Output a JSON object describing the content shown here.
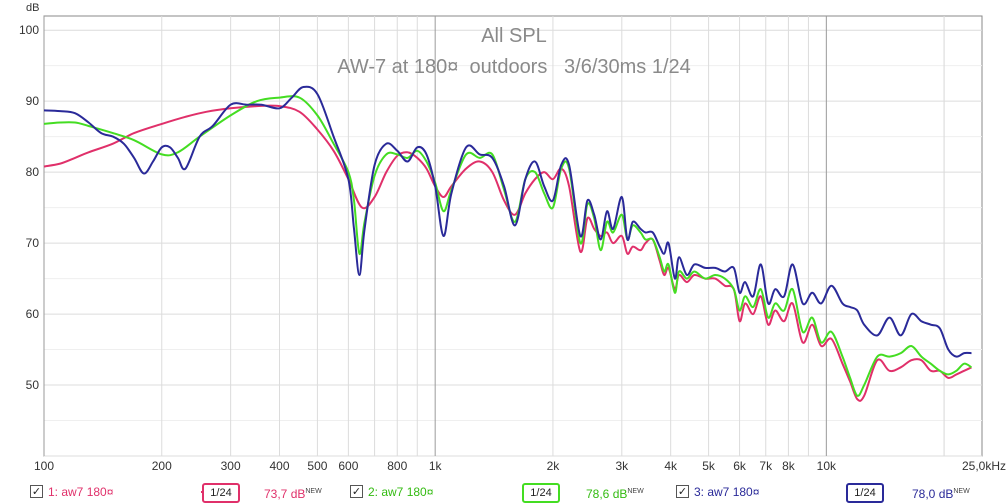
{
  "chart_data": {
    "type": "line",
    "title": "All SPL",
    "subtitle": "AW-7 at 180¤  outdoors   3/6/30ms 1/24",
    "ylabel": "dB",
    "xlabel": "",
    "x_scale": "log",
    "xlim": [
      100,
      25000
    ],
    "ylim": [
      40,
      102
    ],
    "y_ticks": [
      50,
      60,
      70,
      80,
      90,
      100
    ],
    "x_ticks": [
      {
        "value": 100,
        "label": "100"
      },
      {
        "value": 200,
        "label": "200"
      },
      {
        "value": 300,
        "label": "300"
      },
      {
        "value": 400,
        "label": "400"
      },
      {
        "value": 500,
        "label": "500"
      },
      {
        "value": 600,
        "label": "600"
      },
      {
        "value": 800,
        "label": "800"
      },
      {
        "value": 1000,
        "label": "1k"
      },
      {
        "value": 2000,
        "label": "2k"
      },
      {
        "value": 3000,
        "label": "3k"
      },
      {
        "value": 4000,
        "label": "4k"
      },
      {
        "value": 5000,
        "label": "5k"
      },
      {
        "value": 6000,
        "label": "6k"
      },
      {
        "value": 7000,
        "label": "7k"
      },
      {
        "value": 8000,
        "label": "8k"
      },
      {
        "value": 10000,
        "label": "10k"
      },
      {
        "value": 25000,
        "label": "25,0kHz"
      }
    ],
    "grid": true,
    "series": [
      {
        "name": "1: aw7 180¤",
        "color": "#e0306a",
        "smoothing": "1/24",
        "level": "73,7 dB",
        "points": [
          [
            100,
            80.8
          ],
          [
            110,
            81.2
          ],
          [
            120,
            82.0
          ],
          [
            130,
            82.8
          ],
          [
            150,
            84.0
          ],
          [
            170,
            85.5
          ],
          [
            200,
            86.8
          ],
          [
            230,
            87.8
          ],
          [
            260,
            88.5
          ],
          [
            300,
            89.0
          ],
          [
            350,
            89.3
          ],
          [
            400,
            89.3
          ],
          [
            450,
            88.5
          ],
          [
            500,
            86.0
          ],
          [
            550,
            83.0
          ],
          [
            600,
            79.0
          ],
          [
            650,
            75.0
          ],
          [
            700,
            76.5
          ],
          [
            750,
            80.0
          ],
          [
            800,
            82.3
          ],
          [
            850,
            82.8
          ],
          [
            900,
            82.0
          ],
          [
            950,
            80.5
          ],
          [
            1000,
            78.0
          ],
          [
            1050,
            76.5
          ],
          [
            1100,
            78.0
          ],
          [
            1200,
            80.5
          ],
          [
            1300,
            81.5
          ],
          [
            1400,
            80.0
          ],
          [
            1500,
            76.0
          ],
          [
            1600,
            74.0
          ],
          [
            1700,
            77.0
          ],
          [
            1800,
            79.0
          ],
          [
            1900,
            80.0
          ],
          [
            2000,
            79.0
          ],
          [
            2100,
            80.5
          ],
          [
            2200,
            78.0
          ],
          [
            2350,
            68.8
          ],
          [
            2450,
            73.5
          ],
          [
            2550,
            72.0
          ],
          [
            2650,
            71.0
          ],
          [
            2750,
            71.5
          ],
          [
            2850,
            70.0
          ],
          [
            3000,
            71.0
          ],
          [
            3100,
            68.5
          ],
          [
            3200,
            69.5
          ],
          [
            3350,
            69.0
          ],
          [
            3450,
            70.0
          ],
          [
            3600,
            70.5
          ],
          [
            3750,
            67.5
          ],
          [
            3850,
            65.5
          ],
          [
            3950,
            66.5
          ],
          [
            4100,
            63.5
          ],
          [
            4200,
            65.5
          ],
          [
            4400,
            64.5
          ],
          [
            4600,
            65.5
          ],
          [
            4900,
            65.0
          ],
          [
            5200,
            65.0
          ],
          [
            5500,
            64.0
          ],
          [
            5800,
            63.5
          ],
          [
            6000,
            59.0
          ],
          [
            6200,
            61.5
          ],
          [
            6500,
            60.0
          ],
          [
            6800,
            62.5
          ],
          [
            7100,
            58.5
          ],
          [
            7400,
            60.5
          ],
          [
            7800,
            59.0
          ],
          [
            8200,
            61.5
          ],
          [
            8700,
            56.0
          ],
          [
            9200,
            58.5
          ],
          [
            9700,
            55.5
          ],
          [
            10300,
            56.5
          ],
          [
            11000,
            53.0
          ],
          [
            11500,
            50.5
          ],
          [
            12000,
            48.0
          ],
          [
            12500,
            48.5
          ],
          [
            13500,
            53.5
          ],
          [
            14500,
            52.0
          ],
          [
            15500,
            52.5
          ],
          [
            16500,
            53.5
          ],
          [
            17500,
            53.5
          ],
          [
            18500,
            52.0
          ],
          [
            19500,
            52.0
          ],
          [
            20500,
            51.0
          ],
          [
            21500,
            51.5
          ],
          [
            22500,
            52.0
          ],
          [
            23500,
            52.5
          ]
        ]
      },
      {
        "name": "2: aw7 180¤",
        "color": "#44dd22",
        "smoothing": "1/24",
        "level": "78,6 dB",
        "points": [
          [
            100,
            86.8
          ],
          [
            110,
            87.0
          ],
          [
            120,
            87.0
          ],
          [
            130,
            86.5
          ],
          [
            150,
            85.5
          ],
          [
            170,
            84.5
          ],
          [
            200,
            82.5
          ],
          [
            220,
            82.8
          ],
          [
            250,
            85.0
          ],
          [
            300,
            88.0
          ],
          [
            350,
            90.0
          ],
          [
            400,
            90.5
          ],
          [
            450,
            90.5
          ],
          [
            500,
            88.0
          ],
          [
            550,
            84.0
          ],
          [
            600,
            80.0
          ],
          [
            620,
            76.0
          ],
          [
            640,
            68.5
          ],
          [
            660,
            73.0
          ],
          [
            700,
            79.5
          ],
          [
            750,
            82.5
          ],
          [
            800,
            82.5
          ],
          [
            850,
            82.0
          ],
          [
            900,
            83.0
          ],
          [
            950,
            81.5
          ],
          [
            1000,
            78.5
          ],
          [
            1050,
            74.5
          ],
          [
            1100,
            77.5
          ],
          [
            1200,
            82.5
          ],
          [
            1300,
            82.0
          ],
          [
            1400,
            82.5
          ],
          [
            1500,
            77.5
          ],
          [
            1600,
            73.0
          ],
          [
            1700,
            79.0
          ],
          [
            1800,
            80.0
          ],
          [
            1900,
            77.0
          ],
          [
            2000,
            75.0
          ],
          [
            2100,
            80.5
          ],
          [
            2200,
            80.5
          ],
          [
            2350,
            70.0
          ],
          [
            2450,
            75.5
          ],
          [
            2550,
            73.5
          ],
          [
            2650,
            69.0
          ],
          [
            2750,
            73.0
          ],
          [
            2850,
            71.5
          ],
          [
            3000,
            74.0
          ],
          [
            3100,
            70.5
          ],
          [
            3200,
            72.5
          ],
          [
            3350,
            71.5
          ],
          [
            3450,
            70.5
          ],
          [
            3600,
            70.5
          ],
          [
            3750,
            68.0
          ],
          [
            3850,
            66.0
          ],
          [
            3950,
            67.0
          ],
          [
            4100,
            63.0
          ],
          [
            4200,
            66.0
          ],
          [
            4400,
            65.0
          ],
          [
            4600,
            66.0
          ],
          [
            4900,
            65.0
          ],
          [
            5200,
            65.5
          ],
          [
            5500,
            65.0
          ],
          [
            5800,
            63.5
          ],
          [
            6000,
            60.5
          ],
          [
            6200,
            62.5
          ],
          [
            6500,
            61.0
          ],
          [
            6800,
            63.5
          ],
          [
            7100,
            59.5
          ],
          [
            7400,
            61.5
          ],
          [
            7800,
            60.5
          ],
          [
            8200,
            63.5
          ],
          [
            8700,
            57.5
          ],
          [
            9200,
            59.5
          ],
          [
            9700,
            56.0
          ],
          [
            10300,
            57.5
          ],
          [
            11000,
            54.0
          ],
          [
            11500,
            51.0
          ],
          [
            12000,
            48.5
          ],
          [
            12500,
            50.0
          ],
          [
            13500,
            54.0
          ],
          [
            14500,
            54.0
          ],
          [
            15500,
            54.5
          ],
          [
            16500,
            55.5
          ],
          [
            17500,
            54.0
          ],
          [
            18500,
            53.0
          ],
          [
            19500,
            52.0
          ],
          [
            20500,
            51.5
          ],
          [
            21500,
            52.0
          ],
          [
            22500,
            53.0
          ],
          [
            23500,
            52.5
          ]
        ]
      },
      {
        "name": "3: aw7 180¤",
        "color": "#2a2a99",
        "smoothing": "1/24",
        "level": "78,0 dB",
        "points": [
          [
            100,
            88.7
          ],
          [
            110,
            88.6
          ],
          [
            120,
            88.3
          ],
          [
            130,
            87.0
          ],
          [
            140,
            85.5
          ],
          [
            150,
            85.0
          ],
          [
            160,
            84.0
          ],
          [
            170,
            82.0
          ],
          [
            180,
            79.8
          ],
          [
            190,
            81.5
          ],
          [
            200,
            83.5
          ],
          [
            210,
            83.5
          ],
          [
            220,
            82.0
          ],
          [
            230,
            80.5
          ],
          [
            250,
            85.0
          ],
          [
            270,
            86.5
          ],
          [
            300,
            89.5
          ],
          [
            330,
            89.5
          ],
          [
            360,
            89.5
          ],
          [
            400,
            89.0
          ],
          [
            430,
            90.5
          ],
          [
            460,
            92.0
          ],
          [
            500,
            91.0
          ],
          [
            550,
            85.0
          ],
          [
            600,
            79.0
          ],
          [
            620,
            72.0
          ],
          [
            640,
            65.5
          ],
          [
            660,
            72.0
          ],
          [
            700,
            81.0
          ],
          [
            750,
            84.0
          ],
          [
            800,
            83.0
          ],
          [
            850,
            81.5
          ],
          [
            900,
            83.5
          ],
          [
            950,
            82.5
          ],
          [
            1000,
            78.0
          ],
          [
            1050,
            71.0
          ],
          [
            1100,
            77.0
          ],
          [
            1200,
            83.5
          ],
          [
            1300,
            82.5
          ],
          [
            1400,
            82.0
          ],
          [
            1500,
            78.0
          ],
          [
            1600,
            72.5
          ],
          [
            1700,
            79.0
          ],
          [
            1800,
            81.5
          ],
          [
            1900,
            78.0
          ],
          [
            2000,
            76.0
          ],
          [
            2100,
            81.0
          ],
          [
            2200,
            81.0
          ],
          [
            2350,
            71.0
          ],
          [
            2450,
            76.0
          ],
          [
            2550,
            74.0
          ],
          [
            2650,
            70.5
          ],
          [
            2750,
            74.5
          ],
          [
            2850,
            72.0
          ],
          [
            3000,
            76.5
          ],
          [
            3100,
            70.5
          ],
          [
            3200,
            73.0
          ],
          [
            3350,
            72.0
          ],
          [
            3450,
            71.5
          ],
          [
            3600,
            71.5
          ],
          [
            3750,
            69.5
          ],
          [
            3850,
            68.5
          ],
          [
            3950,
            70.0
          ],
          [
            4100,
            65.0
          ],
          [
            4200,
            68.0
          ],
          [
            4400,
            65.5
          ],
          [
            4600,
            67.0
          ],
          [
            4900,
            66.5
          ],
          [
            5200,
            66.5
          ],
          [
            5500,
            66.0
          ],
          [
            5800,
            66.5
          ],
          [
            6000,
            63.0
          ],
          [
            6200,
            64.5
          ],
          [
            6500,
            62.5
          ],
          [
            6800,
            67.0
          ],
          [
            7100,
            61.5
          ],
          [
            7400,
            63.5
          ],
          [
            7800,
            62.5
          ],
          [
            8200,
            67.0
          ],
          [
            8700,
            61.5
          ],
          [
            9200,
            63.0
          ],
          [
            9700,
            61.5
          ],
          [
            10300,
            64.0
          ],
          [
            11000,
            61.5
          ],
          [
            11500,
            61.0
          ],
          [
            12000,
            60.5
          ],
          [
            12500,
            58.5
          ],
          [
            13500,
            57.0
          ],
          [
            14500,
            59.5
          ],
          [
            15500,
            57.0
          ],
          [
            16500,
            60.0
          ],
          [
            17500,
            59.0
          ],
          [
            18500,
            58.5
          ],
          [
            19500,
            58.0
          ],
          [
            20500,
            55.0
          ],
          [
            21500,
            54.0
          ],
          [
            22500,
            54.5
          ],
          [
            23500,
            54.5
          ]
        ]
      }
    ],
    "legend_position": "bottom"
  },
  "legend": {
    "new_badge": "NEW",
    "smooth_label": "1/24",
    "check_glyph": "✓"
  }
}
